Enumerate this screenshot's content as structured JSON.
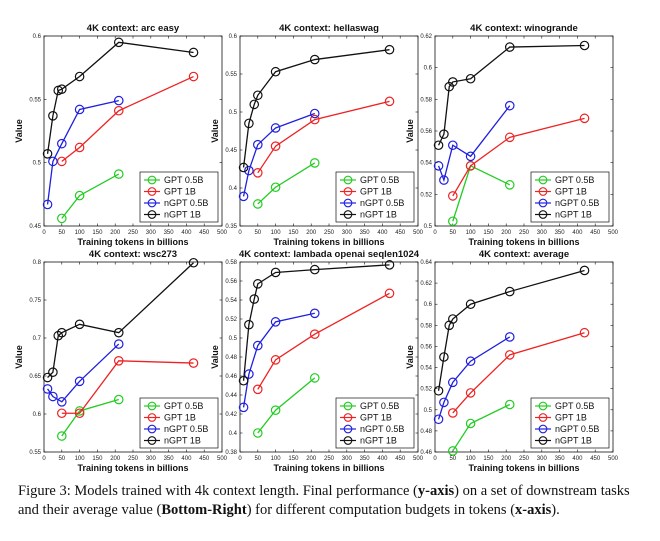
{
  "series_styles": [
    {
      "name": "GPT 0.5B",
      "color": "#22cc22"
    },
    {
      "name": "GPT 1B",
      "color": "#ee2222"
    },
    {
      "name": "nGPT 0.5B",
      "color": "#1f1fe0"
    },
    {
      "name": "nGPT 1B",
      "color": "#111111"
    }
  ],
  "chart_data": [
    {
      "type": "line",
      "title": "4K context:  arc easy",
      "xlabel": "Training tokens in billions",
      "ylabel": "Value",
      "xlim": [
        0,
        500
      ],
      "ylim": [
        0.45,
        0.6
      ],
      "xticks": [
        "0",
        "50",
        "100",
        "150",
        "200",
        "250",
        "300",
        "350",
        "400",
        "450",
        "500"
      ],
      "yticks": [
        "0.45",
        "0.5",
        "0.55",
        "0.6"
      ],
      "legend": "bottom-right",
      "grid": false,
      "series": [
        {
          "name": "GPT 0.5B",
          "x": [
            50,
            100,
            210
          ],
          "y": [
            0.456,
            0.474,
            0.491
          ]
        },
        {
          "name": "GPT 1B",
          "x": [
            50,
            100,
            210,
            420
          ],
          "y": [
            0.501,
            0.512,
            0.541,
            0.568
          ]
        },
        {
          "name": "nGPT 0.5B",
          "x": [
            10,
            25,
            50,
            100,
            210
          ],
          "y": [
            0.467,
            0.501,
            0.515,
            0.542,
            0.549
          ]
        },
        {
          "name": "nGPT 1B",
          "x": [
            10,
            25,
            40,
            50,
            100,
            210,
            420
          ],
          "y": [
            0.507,
            0.537,
            0.557,
            0.558,
            0.568,
            0.595,
            0.587
          ]
        }
      ]
    },
    {
      "type": "line",
      "title": "4K context:  hellaswag",
      "xlabel": "Training tokens in billions",
      "ylabel": "Value",
      "xlim": [
        0,
        500
      ],
      "ylim": [
        0.35,
        0.6
      ],
      "xticks": [
        "0",
        "50",
        "100",
        "150",
        "200",
        "250",
        "300",
        "350",
        "400",
        "450",
        "500"
      ],
      "yticks": [
        "0.35",
        "0.4",
        "0.45",
        "0.5",
        "0.55",
        "0.6"
      ],
      "legend": "bottom-right",
      "grid": false,
      "series": [
        {
          "name": "GPT 0.5B",
          "x": [
            50,
            100,
            210
          ],
          "y": [
            0.379,
            0.401,
            0.433
          ]
        },
        {
          "name": "GPT 1B",
          "x": [
            50,
            100,
            210,
            420
          ],
          "y": [
            0.42,
            0.455,
            0.49,
            0.514
          ]
        },
        {
          "name": "nGPT 0.5B",
          "x": [
            10,
            25,
            50,
            100,
            210
          ],
          "y": [
            0.389,
            0.423,
            0.457,
            0.479,
            0.498
          ]
        },
        {
          "name": "nGPT 1B",
          "x": [
            10,
            25,
            40,
            50,
            100,
            210,
            420
          ],
          "y": [
            0.427,
            0.485,
            0.51,
            0.522,
            0.553,
            0.569,
            0.582
          ]
        }
      ]
    },
    {
      "type": "line",
      "title": "4K context:  winogrande",
      "xlabel": "Training tokens in billions",
      "ylabel": "Value",
      "xlim": [
        0,
        500
      ],
      "ylim": [
        0.5,
        0.62
      ],
      "xticks": [
        "0",
        "50",
        "100",
        "150",
        "200",
        "250",
        "300",
        "350",
        "400",
        "450",
        "500"
      ],
      "yticks": [
        "0.5",
        "0.52",
        "0.54",
        "0.56",
        "0.58",
        "0.6",
        "0.62"
      ],
      "legend": "bottom-right",
      "grid": false,
      "series": [
        {
          "name": "GPT 0.5B",
          "x": [
            50,
            100,
            210
          ],
          "y": [
            0.503,
            0.538,
            0.526
          ]
        },
        {
          "name": "GPT 1B",
          "x": [
            50,
            100,
            210,
            420
          ],
          "y": [
            0.519,
            0.538,
            0.556,
            0.568
          ]
        },
        {
          "name": "nGPT 0.5B",
          "x": [
            10,
            25,
            50,
            100,
            210
          ],
          "y": [
            0.538,
            0.529,
            0.551,
            0.544,
            0.576
          ]
        },
        {
          "name": "nGPT 1B",
          "x": [
            10,
            25,
            40,
            50,
            100,
            210,
            420
          ],
          "y": [
            0.551,
            0.558,
            0.588,
            0.591,
            0.593,
            0.613,
            0.614
          ]
        }
      ]
    },
    {
      "type": "line",
      "title": "4K context:  wsc273",
      "xlabel": "Training tokens in billions",
      "ylabel": "Value",
      "xlim": [
        0,
        500
      ],
      "ylim": [
        0.55,
        0.8
      ],
      "xticks": [
        "0",
        "50",
        "100",
        "150",
        "200",
        "250",
        "300",
        "350",
        "400",
        "450",
        "500"
      ],
      "yticks": [
        "0.55",
        "0.6",
        "0.65",
        "0.7",
        "0.75",
        "0.8"
      ],
      "legend": "bottom-right",
      "grid": false,
      "series": [
        {
          "name": "GPT 0.5B",
          "x": [
            50,
            100,
            210
          ],
          "y": [
            0.571,
            0.604,
            0.619
          ]
        },
        {
          "name": "GPT 1B",
          "x": [
            50,
            100,
            210,
            420
          ],
          "y": [
            0.601,
            0.601,
            0.67,
            0.667
          ]
        },
        {
          "name": "nGPT 0.5B",
          "x": [
            10,
            25,
            50,
            100,
            210
          ],
          "y": [
            0.633,
            0.623,
            0.616,
            0.643,
            0.692
          ]
        },
        {
          "name": "nGPT 1B",
          "x": [
            10,
            25,
            40,
            50,
            100,
            210,
            420
          ],
          "y": [
            0.648,
            0.655,
            0.703,
            0.707,
            0.718,
            0.707,
            0.799
          ]
        }
      ]
    },
    {
      "type": "line",
      "title": "4K context:  lambada openai seqlen1024",
      "xlabel": "Training tokens in billions",
      "ylabel": "Value",
      "xlim": [
        0,
        500
      ],
      "ylim": [
        0.38,
        0.58
      ],
      "xticks": [
        "0",
        "50",
        "100",
        "150",
        "200",
        "250",
        "300",
        "350",
        "400",
        "450",
        "500"
      ],
      "yticks": [
        "0.38",
        "0.4",
        "0.42",
        "0.44",
        "0.46",
        "0.48",
        "0.5",
        "0.52",
        "0.54",
        "0.56",
        "0.58"
      ],
      "legend": "bottom-right",
      "grid": false,
      "series": [
        {
          "name": "GPT 0.5B",
          "x": [
            50,
            100,
            210
          ],
          "y": [
            0.4,
            0.424,
            0.458
          ]
        },
        {
          "name": "GPT 1B",
          "x": [
            50,
            100,
            210,
            420
          ],
          "y": [
            0.446,
            0.477,
            0.504,
            0.547
          ]
        },
        {
          "name": "nGPT 0.5B",
          "x": [
            10,
            25,
            50,
            100,
            210
          ],
          "y": [
            0.427,
            0.462,
            0.492,
            0.517,
            0.526
          ]
        },
        {
          "name": "nGPT 1B",
          "x": [
            10,
            25,
            40,
            50,
            100,
            210,
            420
          ],
          "y": [
            0.455,
            0.514,
            0.541,
            0.557,
            0.569,
            0.572,
            0.577
          ]
        }
      ]
    },
    {
      "type": "line",
      "title": "4K context:  average",
      "xlabel": "Training tokens in billions",
      "ylabel": "Value",
      "xlim": [
        0,
        500
      ],
      "ylim": [
        0.46,
        0.64
      ],
      "xticks": [
        "0",
        "50",
        "100",
        "150",
        "200",
        "250",
        "300",
        "350",
        "400",
        "450",
        "500"
      ],
      "yticks": [
        "0.46",
        "0.48",
        "0.5",
        "0.52",
        "0.54",
        "0.56",
        "0.58",
        "0.6",
        "0.62",
        "0.64"
      ],
      "legend": "bottom-right",
      "grid": false,
      "series": [
        {
          "name": "GPT 0.5B",
          "x": [
            50,
            100,
            210
          ],
          "y": [
            0.461,
            0.487,
            0.505
          ]
        },
        {
          "name": "GPT 1B",
          "x": [
            50,
            100,
            210,
            420
          ],
          "y": [
            0.497,
            0.516,
            0.552,
            0.573
          ]
        },
        {
          "name": "nGPT 0.5B",
          "x": [
            10,
            25,
            50,
            100,
            210
          ],
          "y": [
            0.491,
            0.507,
            0.526,
            0.546,
            0.569
          ]
        },
        {
          "name": "nGPT 1B",
          "x": [
            10,
            25,
            40,
            50,
            100,
            210,
            420
          ],
          "y": [
            0.518,
            0.55,
            0.58,
            0.586,
            0.6,
            0.612,
            0.632
          ]
        }
      ]
    }
  ],
  "caption": {
    "prefix": "Figure 3:  Models trained with 4k context length. Final performance (",
    "b1": "y-axis",
    "mid1": ") on a set of downstream tasks and their average value (",
    "b2": "Bottom-Right",
    "mid2": ") for different computation budgets in tokens (",
    "b3": "x-axis",
    "suffix": ")."
  }
}
